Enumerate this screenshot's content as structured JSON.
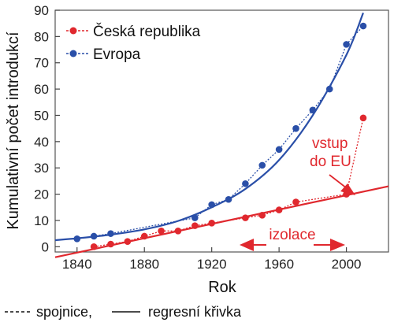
{
  "chart_data": {
    "type": "scatter",
    "xlabel": "Rok",
    "ylabel": "Kumulativní počet introdukcí",
    "xlim": [
      1827,
      2025
    ],
    "ylim": [
      -2,
      90
    ],
    "xticks": [
      1840,
      1880,
      1920,
      1960,
      2000
    ],
    "yticks": [
      0,
      10,
      20,
      30,
      40,
      50,
      60,
      70,
      80,
      90
    ],
    "grid": false,
    "legend_position": "top-left",
    "series": [
      {
        "name": "Česká republika",
        "color": "#e0282e",
        "x": [
          1850,
          1860,
          1870,
          1880,
          1890,
          1900,
          1910,
          1920,
          1940,
          1950,
          1960,
          1970,
          2000,
          2010
        ],
        "y": [
          0,
          1,
          2,
          4,
          6,
          6,
          8,
          9,
          11,
          12,
          14,
          17,
          20,
          49
        ],
        "regression": {
          "type": "linear",
          "x": [
            1827,
            2025
          ],
          "y": [
            -4,
            23
          ]
        }
      },
      {
        "name": "Evropa",
        "color": "#2a4fa8",
        "x": [
          1840,
          1850,
          1860,
          1910,
          1920,
          1930,
          1940,
          1950,
          1960,
          1970,
          1980,
          1990,
          2000,
          2010
        ],
        "y": [
          3,
          4,
          5,
          11,
          16,
          18,
          24,
          31,
          37,
          45,
          52,
          60,
          77,
          84
        ],
        "regression": {
          "type": "exponential",
          "x": [
            1827,
            1840,
            1860,
            1880,
            1900,
            1920,
            1940,
            1960,
            1980,
            2000,
            2010
          ],
          "y": [
            2.5,
            3.2,
            4.6,
            6.6,
            9.8,
            15,
            22,
            33,
            50,
            73,
            89
          ]
        }
      }
    ],
    "annotations": {
      "eu_line1": "vstup",
      "eu_line2": "do EU",
      "isolation": "izolace"
    },
    "footnote": {
      "dashed_label": "spojnice,",
      "solid_label": "regresní křivka"
    }
  }
}
